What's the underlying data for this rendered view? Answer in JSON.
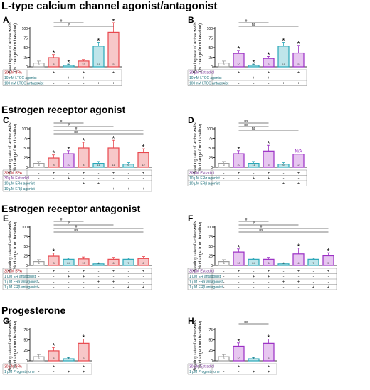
{
  "sections": [
    {
      "title": "L-type calcium channel agonist/antagonist"
    },
    {
      "title": "Estrogen receptor agonist"
    },
    {
      "title": "Estrogen receptor antagonist"
    },
    {
      "title": "Progesterone"
    }
  ],
  "colors": {
    "vehicle": "#9e9e9e",
    "bpa": "#e8484e",
    "bpa_fill": "#f7c7c8",
    "estradiol": "#9b2fc4",
    "estradiol_fill": "#e7c6f0",
    "treatment": "#2aa7b8",
    "treatment_fill": "#bfe5ea"
  },
  "chart_data": [
    {
      "panel": "A",
      "type": "bar",
      "ylabel": "Beating rate of active wells\n(% change from baseline)",
      "ylim": [
        0,
        100
      ],
      "yticks": [
        0,
        25,
        50,
        75,
        100
      ],
      "bar_colors": [
        "vehicle",
        "bpa",
        "treatment",
        "bpa",
        "treatment",
        "bpa"
      ],
      "values": [
        10,
        24,
        4,
        15,
        54,
        90
      ],
      "errors": [
        5,
        8,
        3,
        4,
        10,
        25
      ],
      "n_labels": [
        "6",
        "8",
        "6",
        "23",
        "18",
        "5"
      ],
      "sig": [
        "",
        "*",
        "*",
        "",
        "*",
        "*"
      ],
      "brackets": [
        {
          "from": 1,
          "to": 3,
          "label": "#"
        },
        {
          "from": 1,
          "to": 5,
          "label": "#"
        }
      ],
      "rows": [
        {
          "label": "30 μM BPA",
          "cls": "bpa",
          "signs": [
            "-",
            "+",
            "-",
            "+",
            "-",
            "+"
          ]
        },
        {
          "label": "10 nM LTCC agonist",
          "cls": "treatment",
          "signs": [
            "-",
            "-",
            "+",
            "+",
            "-",
            "-"
          ]
        },
        {
          "label": "100 nM LTCC antagonist",
          "cls": "treatment",
          "signs": [
            "-",
            "-",
            "-",
            "-",
            "+",
            "+"
          ]
        }
      ]
    },
    {
      "panel": "B",
      "type": "bar",
      "ylabel": "Beating rate of active wells\n(% change from baseline)",
      "ylim": [
        0,
        100
      ],
      "yticks": [
        0,
        25,
        50,
        75,
        100
      ],
      "bar_colors": [
        "vehicle",
        "estradiol",
        "treatment",
        "estradiol",
        "treatment",
        "estradiol"
      ],
      "values": [
        10,
        35,
        4,
        22,
        54,
        36
      ],
      "errors": [
        5,
        8,
        3,
        5,
        10,
        20
      ],
      "n_labels": [
        "6",
        "10",
        "6",
        "6",
        "18",
        "5"
      ],
      "sig": [
        "",
        "*",
        "*",
        "*",
        "*",
        "*"
      ],
      "brackets": [
        {
          "from": 1,
          "to": 3,
          "label": "#"
        },
        {
          "from": 1,
          "to": 5,
          "label": "ns"
        }
      ],
      "rows": [
        {
          "label": "30 μM Estradiol",
          "cls": "estradiol",
          "signs": [
            "-",
            "+",
            "-",
            "+",
            "-",
            "+"
          ]
        },
        {
          "label": "10 nM LTCC agonist",
          "cls": "treatment",
          "signs": [
            "-",
            "-",
            "+",
            "+",
            "-",
            "-"
          ]
        },
        {
          "label": "100 nM LTCC antagonist",
          "cls": "treatment",
          "signs": [
            "-",
            "-",
            "-",
            "-",
            "+",
            "+"
          ]
        }
      ]
    },
    {
      "panel": "C",
      "type": "bar",
      "ylabel": "Beating rate of active wells\n(% change from baseline)",
      "ylim": [
        0,
        100
      ],
      "yticks": [
        0,
        25,
        50,
        75,
        100
      ],
      "bar_colors": [
        "vehicle",
        "bpa",
        "estradiol",
        "bpa",
        "treatment",
        "bpa",
        "treatment",
        "bpa"
      ],
      "values": [
        10,
        24,
        35,
        50,
        10,
        50,
        8,
        38
      ],
      "errors": [
        5,
        8,
        8,
        15,
        5,
        20,
        4,
        10
      ],
      "n_labels": [
        "6",
        "8",
        "10",
        "4",
        "11",
        "11",
        "6",
        "12"
      ],
      "sig": [
        "",
        "*",
        "*",
        "*",
        "",
        "*",
        "",
        "*"
      ],
      "brackets": [
        {
          "from": 1,
          "to": 3,
          "label": "#"
        },
        {
          "from": 1,
          "to": 5,
          "label": "#"
        },
        {
          "from": 1,
          "to": 7,
          "label": "#"
        },
        {
          "from": 1,
          "to": 7,
          "label": "ns"
        }
      ],
      "rows": [
        {
          "label": "30 μM BPA",
          "cls": "bpa",
          "signs": [
            "-",
            "+",
            "-",
            "+",
            "-",
            "+",
            "-",
            "+"
          ]
        },
        {
          "label": "30 μM Estradiol",
          "cls": "estradiol",
          "signs": [
            "-",
            "-",
            "+",
            "-",
            "-",
            "-",
            "-",
            "-"
          ]
        },
        {
          "label": "10 μM ERα agonist",
          "cls": "treatment",
          "signs": [
            "-",
            "-",
            "-",
            "+",
            "+",
            "-",
            "-",
            "-"
          ]
        },
        {
          "label": "10 μM ERβ agonist",
          "cls": "treatment",
          "signs": [
            "-",
            "-",
            "-",
            "-",
            "-",
            "+",
            "+",
            "+"
          ]
        }
      ]
    },
    {
      "panel": "D",
      "type": "bar",
      "ylabel": "Beating rate of active wells\n(% change from baseline)",
      "ylim": [
        0,
        100
      ],
      "yticks": [
        0,
        25,
        50,
        75,
        100
      ],
      "bar_colors": [
        "vehicle",
        "estradiol",
        "treatment",
        "estradiol",
        "treatment",
        "estradiol"
      ],
      "values": [
        10,
        35,
        10,
        42,
        8,
        34
      ],
      "errors": [
        5,
        8,
        5,
        15,
        4,
        0
      ],
      "n_labels": [
        "6",
        "10",
        "11",
        "5",
        "6",
        "2"
      ],
      "sig": [
        "",
        "*",
        "",
        "*",
        "",
        "N/A"
      ],
      "brackets": [
        {
          "from": 1,
          "to": 3,
          "label": "ns"
        },
        {
          "from": 1,
          "to": 3,
          "label": "ns"
        },
        {
          "from": 1,
          "to": 5,
          "label": "ns"
        }
      ],
      "rows": [
        {
          "label": "30 μM Estradiol",
          "cls": "estradiol",
          "signs": [
            "-",
            "+",
            "-",
            "+",
            "-",
            "+"
          ]
        },
        {
          "label": "10 μM ERα agonist",
          "cls": "treatment",
          "signs": [
            "-",
            "-",
            "+",
            "+",
            "-",
            "-"
          ]
        },
        {
          "label": "10 μM ERβ agonist",
          "cls": "treatment",
          "signs": [
            "-",
            "-",
            "-",
            "-",
            "+",
            "+"
          ]
        }
      ]
    },
    {
      "panel": "E",
      "type": "bar",
      "ylabel": "Beating rate of active wells\n(% change from baseline)",
      "ylim": [
        0,
        100
      ],
      "yticks": [
        0,
        25,
        50,
        75,
        100
      ],
      "bar_colors": [
        "vehicle",
        "bpa",
        "treatment",
        "bpa",
        "treatment",
        "bpa",
        "treatment",
        "bpa"
      ],
      "values": [
        10,
        24,
        16,
        17,
        4,
        16,
        16,
        18
      ],
      "errors": [
        5,
        8,
        3,
        5,
        2,
        5,
        3,
        5
      ],
      "n_labels": [
        "6",
        "8",
        "24",
        "13",
        "4",
        "6",
        "7",
        "6"
      ],
      "sig": [
        "",
        "*",
        "",
        "",
        "",
        "",
        "",
        ""
      ],
      "brackets": [
        {
          "from": 1,
          "to": 3,
          "label": "#"
        },
        {
          "from": 1,
          "to": 5,
          "label": "#"
        },
        {
          "from": 1,
          "to": 7,
          "label": "#"
        },
        {
          "from": 1,
          "to": 7,
          "label": "ns"
        }
      ],
      "rows": [
        {
          "label": "30 μM BPA",
          "cls": "bpa",
          "signs": [
            "-",
            "+",
            "-",
            "+",
            "-",
            "+",
            "-",
            "+"
          ]
        },
        {
          "label": "1 μM ER antagonist",
          "cls": "treatment",
          "signs": [
            "-",
            "-",
            "+",
            "+",
            "-",
            "-",
            "-",
            "-"
          ]
        },
        {
          "label": "1 μM ERα antagonist",
          "cls": "treatment",
          "signs": [
            "-",
            "-",
            "-",
            "-",
            "+",
            "+",
            "-",
            "-"
          ]
        },
        {
          "label": "1 μM ERβ antagonist",
          "cls": "treatment",
          "signs": [
            "-",
            "-",
            "-",
            "-",
            "-",
            "-",
            "+",
            "+"
          ]
        }
      ]
    },
    {
      "panel": "F",
      "type": "bar",
      "ylabel": "Beating rate of active wells\n(% change from baseline)",
      "ylim": [
        0,
        100
      ],
      "yticks": [
        0,
        25,
        50,
        75,
        100
      ],
      "bar_colors": [
        "vehicle",
        "estradiol",
        "treatment",
        "estradiol",
        "treatment",
        "estradiol",
        "treatment",
        "estradiol"
      ],
      "values": [
        10,
        35,
        16,
        16,
        4,
        30,
        16,
        25
      ],
      "errors": [
        5,
        8,
        3,
        5,
        2,
        15,
        3,
        8
      ],
      "n_labels": [
        "6",
        "10",
        "24",
        "6",
        "4",
        "4",
        "7",
        "5"
      ],
      "sig": [
        "",
        "*",
        "",
        "",
        "",
        "*",
        "",
        "*"
      ],
      "brackets": [
        {
          "from": 1,
          "to": 3,
          "label": "#"
        },
        {
          "from": 1,
          "to": 5,
          "label": "#"
        },
        {
          "from": 1,
          "to": 7,
          "label": "#"
        },
        {
          "from": 1,
          "to": 7,
          "label": "ns"
        }
      ],
      "rows": [
        {
          "label": "30 μM Estradiol",
          "cls": "estradiol",
          "signs": [
            "-",
            "+",
            "-",
            "+",
            "-",
            "+",
            "-",
            "+"
          ]
        },
        {
          "label": "1 μM ER antagonist",
          "cls": "treatment",
          "signs": [
            "-",
            "-",
            "+",
            "+",
            "-",
            "-",
            "-",
            "-"
          ]
        },
        {
          "label": "1 μM ERα antagonist",
          "cls": "treatment",
          "signs": [
            "-",
            "-",
            "-",
            "-",
            "+",
            "+",
            "-",
            "-"
          ]
        },
        {
          "label": "1 μM ERβ antagonist",
          "cls": "treatment",
          "signs": [
            "-",
            "-",
            "-",
            "-",
            "-",
            "-",
            "+",
            "+"
          ]
        }
      ]
    },
    {
      "panel": "G",
      "type": "bar",
      "ylabel": "Beating rate of active wells\n(% change from baseline)",
      "ylim": [
        0,
        75
      ],
      "yticks": [
        0,
        25,
        50,
        75
      ],
      "bar_colors": [
        "vehicle",
        "bpa",
        "treatment",
        "bpa"
      ],
      "values": [
        10,
        24,
        5,
        42
      ],
      "errors": [
        5,
        8,
        3,
        10
      ],
      "n_labels": [
        "6",
        "8",
        "6",
        "5"
      ],
      "sig": [
        "",
        "*",
        "",
        "*"
      ],
      "brackets": [],
      "rows": [
        {
          "label": "30 μM BPA",
          "cls": "bpa",
          "signs": [
            "-",
            "+",
            "-",
            "+"
          ]
        },
        {
          "label": "1 μM Progesterone",
          "cls": "treatment",
          "signs": [
            "-",
            "-",
            "+",
            "+"
          ]
        }
      ]
    },
    {
      "panel": "H",
      "type": "bar",
      "ylabel": "Beating rate of active wells\n(% change from baseline)",
      "ylim": [
        0,
        75
      ],
      "yticks": [
        0,
        25,
        50,
        75
      ],
      "bar_colors": [
        "vehicle",
        "estradiol",
        "treatment",
        "estradiol"
      ],
      "values": [
        10,
        35,
        5,
        42
      ],
      "errors": [
        5,
        8,
        3,
        10
      ],
      "n_labels": [
        "6",
        "10",
        "6",
        "8"
      ],
      "sig": [
        "",
        "*",
        "",
        "*"
      ],
      "brackets": [
        {
          "from": 1,
          "to": 3,
          "label": "ns"
        }
      ],
      "rows": [
        {
          "label": "30 μM Estradiol",
          "cls": "estradiol",
          "signs": [
            "-",
            "+",
            "-",
            "+"
          ]
        },
        {
          "label": "1 μM Progesterone",
          "cls": "treatment",
          "signs": [
            "-",
            "-",
            "+",
            "+"
          ]
        }
      ]
    }
  ]
}
